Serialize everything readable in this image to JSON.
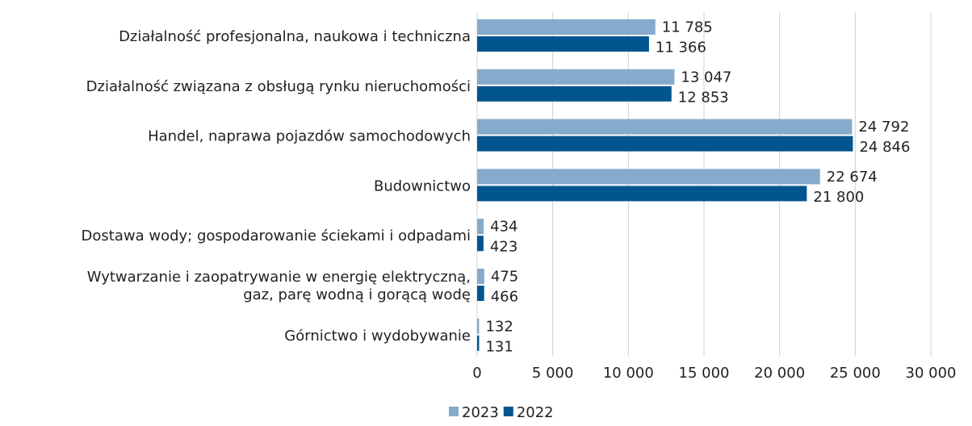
{
  "chart_data": {
    "type": "bar",
    "orientation": "horizontal",
    "categories": [
      "Działalność profesjonalna, naukowa i techniczna",
      "Działalność związana z obsługą rynku nieruchomości",
      "Handel, naprawa pojazdów samochodowych",
      "Budownictwo",
      "Dostawa wody; gospodarowanie ściekami i odpadami",
      "Wytwarzanie i zaopatrywanie w energię elektryczną,\ngaz, parę wodną i gorącą wodę",
      "Górnictwo i wydobywanie"
    ],
    "series": [
      {
        "name": "2023",
        "color": "#86aacb",
        "values": [
          11785,
          13047,
          24792,
          22674,
          434,
          475,
          132
        ],
        "value_labels": [
          "11 785",
          "13 047",
          "24 792",
          "22 674",
          "434",
          "475",
          "132"
        ]
      },
      {
        "name": "2022",
        "color": "#03558f",
        "values": [
          11366,
          12853,
          24846,
          21800,
          423,
          466,
          131
        ],
        "value_labels": [
          "11 366",
          "12 853",
          "24 846",
          "21 800",
          "423",
          "466",
          "131"
        ]
      }
    ],
    "xlim": [
      0,
      30000
    ],
    "xticks": [
      0,
      {
        "value": 5000,
        "label": "5 000"
      },
      {
        "value": 10000,
        "label": "10 000"
      },
      {
        "value": 15000,
        "label": "15 000"
      },
      {
        "value": 20000,
        "label": "20 000"
      },
      {
        "value": 25000,
        "label": "25 000"
      },
      {
        "value": 30000,
        "label": "30 000"
      }
    ],
    "grid": true,
    "legend": "bottom"
  }
}
